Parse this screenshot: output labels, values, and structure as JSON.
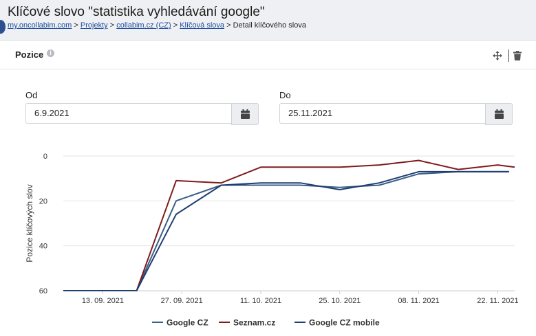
{
  "page": {
    "title": "Klíčové slovo \"statistika vyhledávání google\"",
    "breadcrumb": [
      {
        "label": "my.oncollabim.com",
        "link": true
      },
      {
        "label": "Projekty",
        "link": true
      },
      {
        "label": "collabim.cz (CZ)",
        "link": true
      },
      {
        "label": "Klíčová slova",
        "link": true
      },
      {
        "label": "Detail klíčového slova",
        "link": false
      }
    ],
    "separator": ">"
  },
  "panel": {
    "title": "Pozice",
    "info_icon": "info-icon",
    "actions": [
      "move-icon",
      "trash-icon"
    ]
  },
  "filters": {
    "from_label": "Od",
    "from_value": "6.9.2021",
    "to_label": "Do",
    "to_value": "25.11.2021",
    "calendar_icon": "calendar-icon"
  },
  "colors": {
    "google_cz": "#3a5f86",
    "seznam": "#7f1b1b",
    "google_cz_mobile": "#1f3e74",
    "grid": "#e6e6e6",
    "link": "#1f4e9c"
  },
  "chart_data": {
    "type": "line",
    "title": "",
    "xlabel": "",
    "ylabel": "Pozice klíčových slov",
    "y_reversed": true,
    "ylim": [
      0,
      60
    ],
    "yticks": [
      0,
      20,
      40,
      60
    ],
    "xlim": [
      "2021-09-06",
      "2021-11-25"
    ],
    "xticks": [
      "2021-09-13",
      "2021-09-27",
      "2021-10-11",
      "2021-10-25",
      "2021-11-08",
      "2021-11-22"
    ],
    "xtick_labels": [
      "13. 09. 2021",
      "27. 09. 2021",
      "11. 10. 2021",
      "25. 10. 2021",
      "08. 11. 2021",
      "22. 11. 2021"
    ],
    "grid": true,
    "legend": "bottom",
    "series": [
      {
        "name": "Google CZ",
        "points": [
          [
            "2021-09-06",
            60
          ],
          [
            "2021-09-19",
            60
          ],
          [
            "2021-09-26",
            20
          ],
          [
            "2021-10-04",
            13
          ],
          [
            "2021-10-11",
            13
          ],
          [
            "2021-10-18",
            13
          ],
          [
            "2021-10-25",
            14
          ],
          [
            "2021-11-01",
            13
          ],
          [
            "2021-11-08",
            8
          ],
          [
            "2021-11-15",
            7
          ],
          [
            "2021-11-22",
            7
          ],
          [
            "2021-11-24",
            7
          ]
        ]
      },
      {
        "name": "Seznam.cz",
        "points": [
          [
            "2021-09-06",
            60
          ],
          [
            "2021-09-19",
            60
          ],
          [
            "2021-09-26",
            11
          ],
          [
            "2021-10-04",
            12
          ],
          [
            "2021-10-11",
            5
          ],
          [
            "2021-10-18",
            5
          ],
          [
            "2021-10-25",
            5
          ],
          [
            "2021-11-01",
            4
          ],
          [
            "2021-11-08",
            2
          ],
          [
            "2021-11-15",
            6
          ],
          [
            "2021-11-22",
            4
          ],
          [
            "2021-11-25",
            5
          ]
        ]
      },
      {
        "name": "Google CZ mobile",
        "points": [
          [
            "2021-09-06",
            60
          ],
          [
            "2021-09-19",
            60
          ],
          [
            "2021-09-26",
            26
          ],
          [
            "2021-10-04",
            13
          ],
          [
            "2021-10-11",
            12
          ],
          [
            "2021-10-18",
            12
          ],
          [
            "2021-10-25",
            15
          ],
          [
            "2021-11-01",
            12
          ],
          [
            "2021-11-08",
            7
          ],
          [
            "2021-11-15",
            7
          ],
          [
            "2021-11-22",
            7
          ],
          [
            "2021-11-24",
            7
          ]
        ]
      }
    ]
  }
}
